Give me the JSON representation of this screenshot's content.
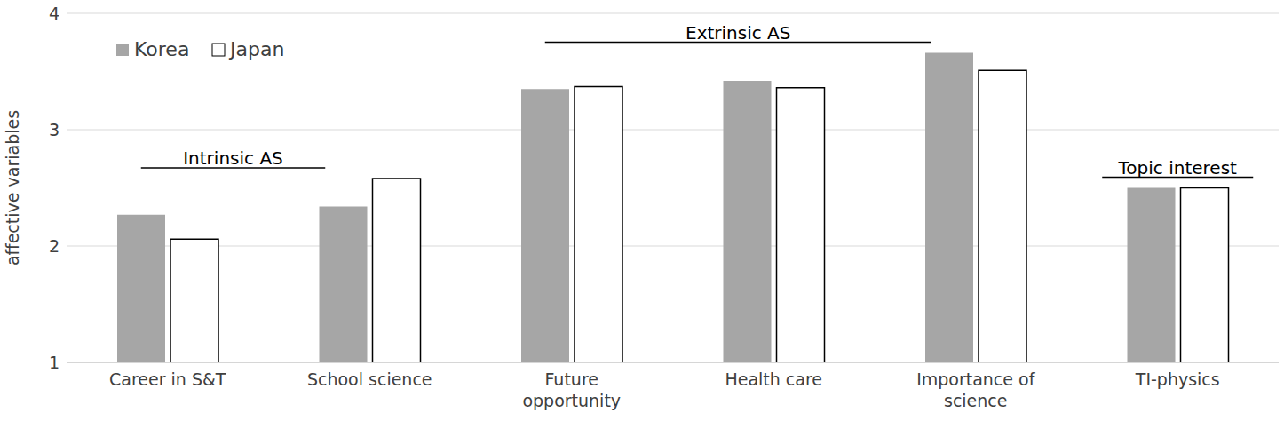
{
  "chart_data": {
    "type": "bar",
    "y_label": "affective variables",
    "categories": [
      "Career in S&T",
      "School science",
      "Future opportunity",
      "Health care",
      "Importance of science",
      "TI-physics"
    ],
    "series": [
      {
        "name": "Korea",
        "color": "#a6a6a6",
        "values": [
          2.27,
          2.34,
          3.35,
          3.42,
          3.66,
          2.5
        ]
      },
      {
        "name": "Japan",
        "color": "#ffffff",
        "values": [
          2.06,
          2.58,
          3.37,
          3.36,
          3.51,
          2.5
        ]
      }
    ],
    "ylim": [
      1,
      4
    ],
    "yticks": [
      1,
      2,
      3,
      4
    ],
    "grid": true,
    "legend": "top-left",
    "annotations": [
      {
        "text": "Intrinsic AS",
        "span": [
          "Career in S&T",
          "School science"
        ]
      },
      {
        "text": "Extrinsic AS",
        "span": [
          "Future opportunity",
          "Health care",
          "Importance of science"
        ]
      },
      {
        "text": "Topic interest",
        "span": [
          "TI-physics"
        ]
      }
    ]
  }
}
